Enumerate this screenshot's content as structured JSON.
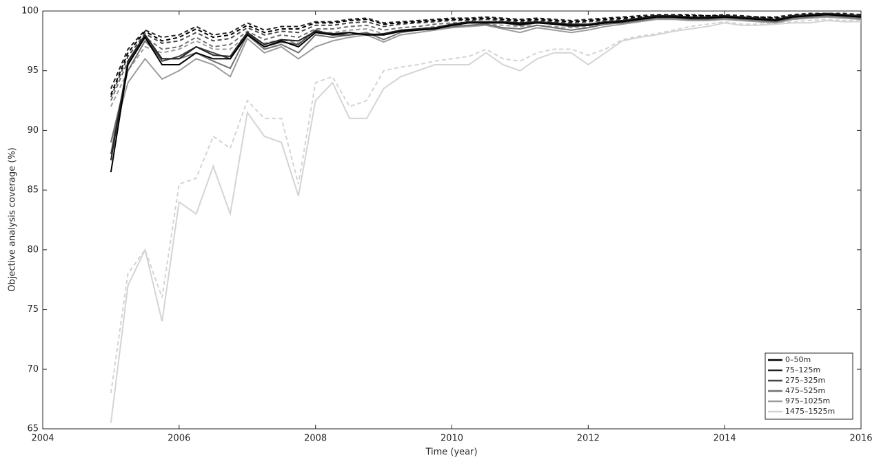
{
  "chart_data": {
    "type": "line",
    "x_label": "Time (year)",
    "y_label": "Objective analysis coverage (%)",
    "xlim": [
      2004,
      2016
    ],
    "xticks": [
      2004,
      2006,
      2008,
      2010,
      2012,
      2014,
      2016
    ],
    "ylim": [
      65,
      100
    ],
    "yticks": [
      65,
      70,
      75,
      80,
      85,
      90,
      95,
      100
    ],
    "legend": "lower right",
    "x": [
      2005,
      2005.25,
      2005.5,
      2005.75,
      2006,
      2006.25,
      2006.5,
      2006.75,
      2007,
      2007.25,
      2007.5,
      2007.75,
      2008,
      2008.25,
      2008.5,
      2008.75,
      2009,
      2009.25,
      2009.5,
      2009.75,
      2010,
      2010.25,
      2010.5,
      2010.75,
      2011,
      2011.25,
      2011.5,
      2011.75,
      2012,
      2012.25,
      2012.5,
      2012.75,
      2013,
      2013.25,
      2013.5,
      2013.75,
      2014,
      2014.25,
      2014.5,
      2014.75,
      2015,
      2015.25,
      2015.5,
      2015.75,
      2016
    ],
    "series": [
      {
        "name": "0–50m",
        "color": "#000000",
        "values": [
          86.5,
          95.5,
          97.8,
          95.5,
          95.5,
          96.5,
          96,
          96,
          98,
          97,
          97.5,
          97,
          98.2,
          98,
          98.2,
          98,
          98,
          98.3,
          98.4,
          98.5,
          98.8,
          99,
          99,
          99,
          98.9,
          99,
          98.9,
          98.8,
          98.8,
          99,
          99.1,
          99.3,
          99.5,
          99.5,
          99.4,
          99.4,
          99.5,
          99.4,
          99.3,
          99.2,
          99.5,
          99.6,
          99.7,
          99.6,
          99.5
        ],
        "dashed_values": [
          93,
          96.5,
          98.3,
          97.5,
          97.8,
          98.5,
          97.8,
          98,
          98.8,
          98.2,
          98.5,
          98.5,
          99,
          99,
          99.2,
          99.3,
          98.9,
          99,
          99.1,
          99.2,
          99.3,
          99.3,
          99.4,
          99.3,
          99.2,
          99.3,
          99.2,
          99.1,
          99.2,
          99.3,
          99.4,
          99.5,
          99.6,
          99.6,
          99.6,
          99.6,
          99.6,
          99.5,
          99.5,
          99.4,
          99.6,
          99.7,
          99.8,
          99.7,
          99.6
        ]
      },
      {
        "name": "75–125m",
        "color": "#222222",
        "values": [
          87.5,
          95.8,
          98,
          96,
          96,
          97,
          96.3,
          96.2,
          98.2,
          97.2,
          97.6,
          97.5,
          98.3,
          98.1,
          98.2,
          98,
          98.1,
          98.4,
          98.5,
          98.6,
          98.9,
          99.1,
          99.1,
          99.1,
          99,
          99.1,
          99,
          98.9,
          98.9,
          99.1,
          99.2,
          99.4,
          99.6,
          99.6,
          99.5,
          99.5,
          99.6,
          99.5,
          99.4,
          99.3,
          99.6,
          99.7,
          99.8,
          99.7,
          99.6
        ],
        "dashed_values": [
          93.5,
          96.8,
          98.4,
          97.8,
          98,
          98.7,
          98,
          98.2,
          99,
          98.4,
          98.7,
          98.7,
          99.1,
          99.1,
          99.3,
          99.4,
          99,
          99.1,
          99.2,
          99.3,
          99.4,
          99.4,
          99.5,
          99.4,
          99.3,
          99.4,
          99.3,
          99.2,
          99.3,
          99.4,
          99.5,
          99.6,
          99.7,
          99.7,
          99.7,
          99.6,
          99.7,
          99.6,
          99.5,
          99.5,
          99.7,
          99.8,
          99.8,
          99.8,
          99.7
        ]
      },
      {
        "name": "275–325m",
        "color": "#474747",
        "values": [
          88,
          95.6,
          97.9,
          95.8,
          96.2,
          97,
          96.5,
          96,
          98.1,
          97,
          97.4,
          97.2,
          98.4,
          98,
          98,
          98.1,
          98,
          98.3,
          98.5,
          98.6,
          98.8,
          99,
          99,
          99,
          98.8,
          99,
          98.9,
          98.7,
          98.8,
          99,
          99.1,
          99.3,
          99.5,
          99.5,
          99.4,
          99.4,
          99.5,
          99.4,
          99.3,
          99.2,
          99.5,
          99.6,
          99.7,
          99.6,
          99.5
        ],
        "dashed_values": [
          92.8,
          96.2,
          98.1,
          97.3,
          97.5,
          98.2,
          97.5,
          97.7,
          98.6,
          98,
          98.3,
          98.2,
          98.8,
          98.8,
          99,
          99.1,
          98.7,
          98.9,
          99,
          99.1,
          99.2,
          99.2,
          99.3,
          99.2,
          99.1,
          99.2,
          99.1,
          99,
          99.1,
          99.2,
          99.3,
          99.4,
          99.5,
          99.5,
          99.5,
          99.5,
          99.5,
          99.4,
          99.4,
          99.3,
          99.5,
          99.6,
          99.7,
          99.6,
          99.5
        ]
      },
      {
        "name": "475–525m",
        "color": "#707070",
        "values": [
          89,
          95,
          97.5,
          96,
          96,
          96.5,
          95.8,
          95.2,
          98,
          96.8,
          97.2,
          96.5,
          98,
          97.8,
          98,
          98.2,
          97.6,
          98.2,
          98.4,
          98.5,
          98.7,
          98.8,
          98.9,
          98.6,
          98.5,
          98.8,
          98.6,
          98.4,
          98.6,
          98.9,
          99,
          99.2,
          99.4,
          99.4,
          99.3,
          99.3,
          99.4,
          99.3,
          99.2,
          99.1,
          99.4,
          99.5,
          99.6,
          99.5,
          99.4
        ],
        "dashed_values": [
          92.5,
          95.8,
          97.8,
          96.8,
          97,
          97.8,
          97,
          97.2,
          98.3,
          97.6,
          98,
          97.8,
          98.5,
          98.5,
          98.7,
          98.8,
          98.4,
          98.6,
          98.7,
          98.9,
          99,
          99,
          99.1,
          99,
          98.9,
          99,
          98.9,
          98.8,
          98.9,
          99,
          99.1,
          99.3,
          99.4,
          99.4,
          99.4,
          99.4,
          99.4,
          99.3,
          99.3,
          99.2,
          99.4,
          99.5,
          99.6,
          99.5,
          99.4
        ]
      },
      {
        "name": "975–1025m",
        "color": "#9c9c9c",
        "values": [
          89,
          94,
          96,
          94.3,
          95,
          96,
          95.5,
          94.5,
          97.7,
          96.5,
          97,
          96,
          97,
          97.5,
          97.8,
          98,
          97.4,
          98,
          98.2,
          98.4,
          98.6,
          98.7,
          98.8,
          98.5,
          98.2,
          98.6,
          98.4,
          98.2,
          98.4,
          98.7,
          98.9,
          99.1,
          99.3,
          99.3,
          99.2,
          99.2,
          99.3,
          99.2,
          99.1,
          99,
          99.3,
          99.4,
          99.5,
          99.4,
          99.3
        ],
        "dashed_values": [
          92,
          95,
          97,
          96.5,
          96.8,
          97.5,
          96.8,
          96.8,
          98,
          97.3,
          97.6,
          97.3,
          98.2,
          98.2,
          98.4,
          98.5,
          98.1,
          98.3,
          98.5,
          98.7,
          98.8,
          98.8,
          98.9,
          98.8,
          98.7,
          98.8,
          98.7,
          98.6,
          98.7,
          98.9,
          99,
          99.2,
          99.3,
          99.3,
          99.3,
          99.3,
          99.3,
          99.2,
          99.2,
          99.1,
          99.3,
          99.4,
          99.5,
          99.4,
          99.3
        ]
      },
      {
        "name": "1475–1525m",
        "color": "#d4d4d4",
        "values": [
          65.5,
          77,
          80,
          74,
          84,
          83,
          87,
          83,
          91.5,
          89.5,
          89,
          84.5,
          92.5,
          94,
          91,
          91,
          93.5,
          94.5,
          95,
          95.5,
          95.5,
          95.5,
          96.5,
          95.5,
          95,
          96,
          96.5,
          96.5,
          95.5,
          96.5,
          97.5,
          97.8,
          98,
          98.3,
          98.5,
          98.7,
          99,
          98.8,
          98.8,
          98.9,
          99,
          99,
          99.2,
          99.1,
          99.1
        ],
        "dashed_values": [
          68,
          78,
          80,
          76,
          85.5,
          86,
          89.5,
          88.5,
          92.5,
          91,
          91,
          85.5,
          94,
          94.5,
          92,
          92.5,
          95,
          95.3,
          95.5,
          95.8,
          96,
          96.2,
          96.8,
          96,
          95.8,
          96.5,
          96.8,
          96.8,
          96.3,
          96.8,
          97.6,
          97.9,
          98.1,
          98.4,
          98.7,
          98.9,
          99.1,
          98.9,
          98.9,
          99,
          99.1,
          99.2,
          99.3,
          99.2,
          99.2
        ]
      }
    ]
  }
}
